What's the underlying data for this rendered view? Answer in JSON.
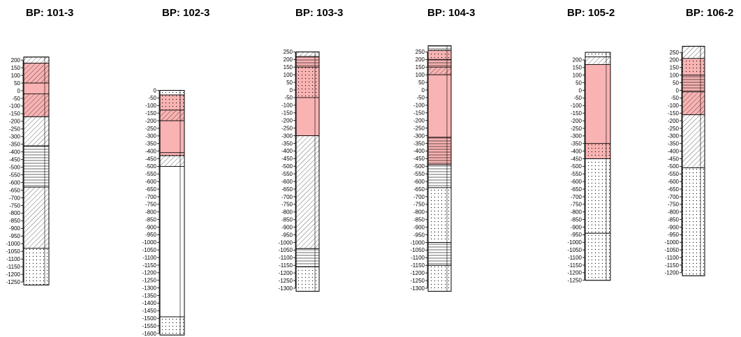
{
  "colors": {
    "contamination": "#f9b3b3",
    "outline": "#000000",
    "background": "#ffffff"
  },
  "boreholes": [
    {
      "title": "BP:   101-3",
      "ticks": {
        "top": 200,
        "bottom": -1250,
        "step": 50
      },
      "column": {
        "top": 220,
        "bottom": -1270
      },
      "layers": [
        {
          "top": 220,
          "bottom": 180,
          "pattern": "diagonal-hatch"
        },
        {
          "top": 180,
          "bottom": 50,
          "pattern": "diagonal-hatch",
          "highlight": true
        },
        {
          "top": 50,
          "bottom": -20,
          "pattern": "plain",
          "highlight": true
        },
        {
          "top": -20,
          "bottom": -170,
          "pattern": "diagonal-hatch",
          "highlight": true
        },
        {
          "top": -170,
          "bottom": -360,
          "pattern": "diagonal-hatch"
        },
        {
          "top": -360,
          "bottom": -630,
          "pattern": "horizontal-lines"
        },
        {
          "top": -630,
          "bottom": -1030,
          "pattern": "diagonal-hatch"
        },
        {
          "top": -1030,
          "bottom": -1270,
          "pattern": "dots"
        }
      ]
    },
    {
      "title": "BP:   102-3",
      "ticks": {
        "top": 0,
        "bottom": -1600,
        "step": 50
      },
      "column": {
        "top": 0,
        "bottom": -1610
      },
      "layers": [
        {
          "top": 0,
          "bottom": -30,
          "pattern": "dots"
        },
        {
          "top": -30,
          "bottom": -130,
          "pattern": "dots",
          "highlight": true
        },
        {
          "top": -130,
          "bottom": -200,
          "pattern": "diagonal-hatch",
          "highlight": true
        },
        {
          "top": -200,
          "bottom": -410,
          "pattern": "plain",
          "highlight": true
        },
        {
          "top": -410,
          "bottom": -430,
          "pattern": "dots",
          "highlight": true
        },
        {
          "top": -430,
          "bottom": -500,
          "pattern": "diagonal-hatch"
        },
        {
          "top": -500,
          "bottom": -1490,
          "pattern": "plain"
        },
        {
          "top": -1490,
          "bottom": -1610,
          "pattern": "dots"
        }
      ]
    },
    {
      "title": "BP:   103-3",
      "ticks": {
        "top": 250,
        "bottom": -1300,
        "step": 50
      },
      "column": {
        "top": 250,
        "bottom": -1320
      },
      "layers": [
        {
          "top": 250,
          "bottom": 220,
          "pattern": "diagonal-hatch"
        },
        {
          "top": 220,
          "bottom": 150,
          "pattern": "horizontal-lines",
          "highlight": true
        },
        {
          "top": 150,
          "bottom": -50,
          "pattern": "dots",
          "highlight": true
        },
        {
          "top": -50,
          "bottom": -300,
          "pattern": "plain",
          "highlight": true
        },
        {
          "top": -300,
          "bottom": -1040,
          "pattern": "diagonal-hatch"
        },
        {
          "top": -1040,
          "bottom": -1160,
          "pattern": "horizontal-lines"
        },
        {
          "top": -1160,
          "bottom": -1320,
          "pattern": "dots"
        }
      ]
    },
    {
      "title": "BP:   104-3",
      "ticks": {
        "top": 250,
        "bottom": -1300,
        "step": 50
      },
      "column": {
        "top": 290,
        "bottom": -1320
      },
      "layers": [
        {
          "top": 290,
          "bottom": 260,
          "pattern": "horizontal-lines"
        },
        {
          "top": 260,
          "bottom": 200,
          "pattern": "dots",
          "highlight": true
        },
        {
          "top": 200,
          "bottom": 150,
          "pattern": "horizontal-lines",
          "highlight": true
        },
        {
          "top": 150,
          "bottom": 100,
          "pattern": "diagonal-hatch",
          "highlight": true
        },
        {
          "top": 100,
          "bottom": -310,
          "pattern": "plain",
          "highlight": true
        },
        {
          "top": -310,
          "bottom": -490,
          "pattern": "horizontal-lines",
          "highlight": true
        },
        {
          "top": -490,
          "bottom": -640,
          "pattern": "horizontal-lines"
        },
        {
          "top": -640,
          "bottom": -1000,
          "pattern": "dots"
        },
        {
          "top": -1000,
          "bottom": -1150,
          "pattern": "horizontal-lines"
        },
        {
          "top": -1150,
          "bottom": -1320,
          "pattern": "dots"
        }
      ]
    },
    {
      "title": "BP:   105-2",
      "ticks": {
        "top": 200,
        "bottom": -1250,
        "step": 50
      },
      "column": {
        "top": 250,
        "bottom": -1250
      },
      "layers": [
        {
          "top": 250,
          "bottom": 220,
          "pattern": "dots"
        },
        {
          "top": 220,
          "bottom": 170,
          "pattern": "diagonal-hatch"
        },
        {
          "top": 170,
          "bottom": -350,
          "pattern": "plain",
          "highlight": true
        },
        {
          "top": -350,
          "bottom": -450,
          "pattern": "dots",
          "highlight": true
        },
        {
          "top": -450,
          "bottom": -940,
          "pattern": "dots"
        },
        {
          "top": -940,
          "bottom": -1250,
          "pattern": "dots"
        }
      ]
    },
    {
      "title": "BP:   106-2",
      "ticks": {
        "top": 250,
        "bottom": -1200,
        "step": 50
      },
      "column": {
        "top": 290,
        "bottom": -1220
      },
      "layers": [
        {
          "top": 290,
          "bottom": 210,
          "pattern": "diagonal-hatch"
        },
        {
          "top": 210,
          "bottom": 100,
          "pattern": "dots",
          "highlight": true
        },
        {
          "top": 100,
          "bottom": -10,
          "pattern": "horizontal-lines",
          "highlight": true
        },
        {
          "top": -10,
          "bottom": -160,
          "pattern": "diagonal-hatch",
          "highlight": true
        },
        {
          "top": -160,
          "bottom": -510,
          "pattern": "diagonal-hatch"
        },
        {
          "top": -510,
          "bottom": -1220,
          "pattern": "dots"
        }
      ]
    }
  ]
}
